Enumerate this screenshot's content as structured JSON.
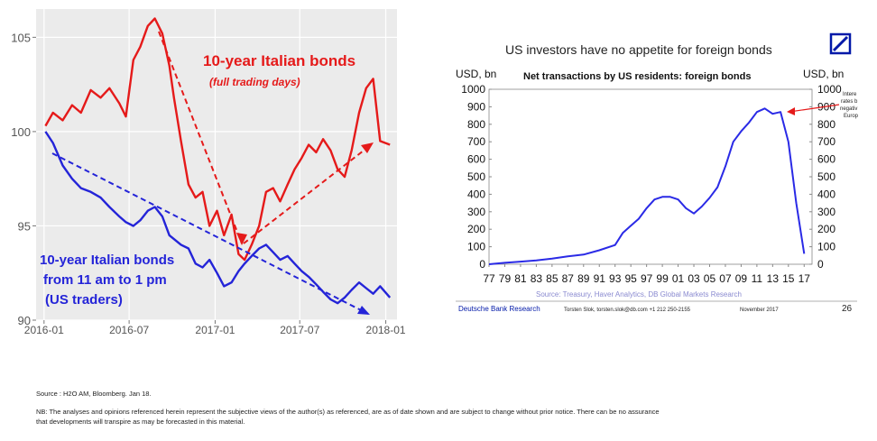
{
  "chart_data": [
    {
      "type": "line",
      "title": "",
      "ylim": [
        90,
        106.5
      ],
      "y_ticks": [
        "105",
        "100",
        "95",
        "90"
      ],
      "x_ticks": [
        "2016-01",
        "2016-07",
        "2017-01",
        "2017-07",
        "2018-01"
      ],
      "grid": true,
      "series": [
        {
          "name": "10-year Italian bonds",
          "sub_label": "(full trading days)",
          "color": "#e51a1a",
          "x": [
            "2016-01-04",
            "2016-01-20",
            "2016-02-10",
            "2016-03-01",
            "2016-03-20",
            "2016-04-10",
            "2016-05-01",
            "2016-05-20",
            "2016-06-10",
            "2016-06-24",
            "2016-07-10",
            "2016-07-25",
            "2016-08-10",
            "2016-08-25",
            "2016-09-10",
            "2016-09-25",
            "2016-10-05",
            "2016-10-20",
            "2016-11-05",
            "2016-11-20",
            "2016-12-05",
            "2016-12-20",
            "2017-01-05",
            "2017-01-20",
            "2017-02-05",
            "2017-02-20",
            "2017-03-05",
            "2017-03-20",
            "2017-04-05",
            "2017-04-20",
            "2017-05-05",
            "2017-05-20",
            "2017-06-05",
            "2017-06-20",
            "2017-07-05",
            "2017-07-20",
            "2017-08-05",
            "2017-08-20",
            "2017-09-05",
            "2017-09-20",
            "2017-10-05",
            "2017-10-20",
            "2017-11-05",
            "2017-11-20",
            "2017-12-05",
            "2017-12-20",
            "2018-01-10"
          ],
          "y": [
            100.3,
            101.0,
            100.6,
            101.4,
            101.0,
            102.2,
            101.8,
            102.3,
            101.5,
            100.8,
            103.8,
            104.5,
            105.6,
            106.0,
            105.2,
            103.5,
            101.8,
            99.5,
            97.2,
            96.5,
            96.8,
            95.0,
            95.8,
            94.5,
            95.6,
            93.5,
            93.2,
            94.0,
            95.0,
            96.8,
            97.0,
            96.3,
            97.2,
            98.0,
            98.6,
            99.3,
            98.9,
            99.6,
            99.0,
            98.0,
            97.6,
            99.0,
            101.0,
            102.3,
            102.8,
            99.5,
            99.3
          ]
        },
        {
          "name": "10-year Italian bonds",
          "sub_label": "from 11 am to 1 pm",
          "sub_label2": "(US traders)",
          "color": "#2424d8",
          "x": [
            "2016-01-04",
            "2016-01-20",
            "2016-02-10",
            "2016-03-01",
            "2016-03-20",
            "2016-04-10",
            "2016-05-01",
            "2016-05-20",
            "2016-06-10",
            "2016-06-24",
            "2016-07-10",
            "2016-07-25",
            "2016-08-10",
            "2016-08-25",
            "2016-09-10",
            "2016-09-25",
            "2016-10-05",
            "2016-10-20",
            "2016-11-05",
            "2016-11-20",
            "2016-12-05",
            "2016-12-20",
            "2017-01-05",
            "2017-01-20",
            "2017-02-05",
            "2017-02-20",
            "2017-03-05",
            "2017-03-20",
            "2017-04-05",
            "2017-04-20",
            "2017-05-05",
            "2017-05-20",
            "2017-06-05",
            "2017-06-20",
            "2017-07-05",
            "2017-07-20",
            "2017-08-05",
            "2017-08-20",
            "2017-09-05",
            "2017-09-20",
            "2017-10-05",
            "2017-10-20",
            "2017-11-05",
            "2017-11-20",
            "2017-12-05",
            "2017-12-20",
            "2018-01-10"
          ],
          "y": [
            100.0,
            99.4,
            98.2,
            97.5,
            97.0,
            96.8,
            96.5,
            96.0,
            95.5,
            95.2,
            95.0,
            95.3,
            95.8,
            96.0,
            95.5,
            94.5,
            94.3,
            94.0,
            93.8,
            93.0,
            92.8,
            93.2,
            92.5,
            91.8,
            92.0,
            92.6,
            93.0,
            93.4,
            93.8,
            94.0,
            93.6,
            93.2,
            93.4,
            93.0,
            92.6,
            92.3,
            91.9,
            91.5,
            91.1,
            90.9,
            91.2,
            91.6,
            92.0,
            91.7,
            91.4,
            91.8,
            91.2
          ]
        }
      ],
      "labels": {
        "red_title": "10-year Italian bonds",
        "red_sub": "(full trading days)",
        "blue_line1": "10-year Italian bonds",
        "blue_line2": "from 11 am to 1 pm",
        "blue_line3": "(US traders)"
      }
    },
    {
      "type": "line",
      "title": "US investors have no appetite for foreign bonds",
      "subtitle": "Net transactions by US residents: foreign bonds",
      "ylabel_left": "USD, bn",
      "ylabel_right": "USD, bn",
      "ylim": [
        0,
        1000
      ],
      "y_ticks": [
        0,
        100,
        200,
        300,
        400,
        500,
        600,
        700,
        800,
        900,
        1000
      ],
      "x_ticks": [
        "77",
        "79",
        "81",
        "83",
        "85",
        "87",
        "89",
        "91",
        "93",
        "95",
        "97",
        "99",
        "01",
        "03",
        "05",
        "07",
        "09",
        "11",
        "13",
        "15",
        "17"
      ],
      "grid": false,
      "series": [
        {
          "name": "",
          "color": "#2a2ae6",
          "x": [
            1977,
            1979,
            1981,
            1983,
            1985,
            1987,
            1989,
            1991,
            1993,
            1994,
            1995,
            1996,
            1997,
            1998,
            1999,
            2000,
            2001,
            2002,
            2003,
            2004,
            2005,
            2006,
            2007,
            2008,
            2009,
            2010,
            2011,
            2012,
            2013,
            2014,
            2015,
            2016,
            2017
          ],
          "y": [
            0,
            8,
            15,
            22,
            32,
            45,
            55,
            80,
            110,
            180,
            220,
            260,
            320,
            370,
            385,
            385,
            370,
            320,
            290,
            330,
            380,
            440,
            560,
            700,
            760,
            810,
            870,
            890,
            860,
            870,
            700,
            350,
            60
          ]
        }
      ],
      "annotation": [
        "Intere",
        "rates b",
        "negativ",
        "Europ"
      ],
      "source": "Source: Treasury, Haver Analytics, DB Global Markets Research",
      "footer_left": "Deutsche Bank Research",
      "footer_author": "Torsten Slok, torsten.slok@db.com +1 212 250-2155",
      "footer_date": "November 2017",
      "page_number": "26",
      "logo_color": "#0018a8"
    }
  ],
  "source_note": "Source : H2O AM, Bloomberg. Jan 18.",
  "disclaimer_line1": "NB: The analyses and opinions referenced herein represent the subjective views of the author(s) as referenced, are as of date shown and are subject to change without prior notice. There can be no assurance",
  "disclaimer_line2": "that developments will transpire as may be forecasted in this material."
}
